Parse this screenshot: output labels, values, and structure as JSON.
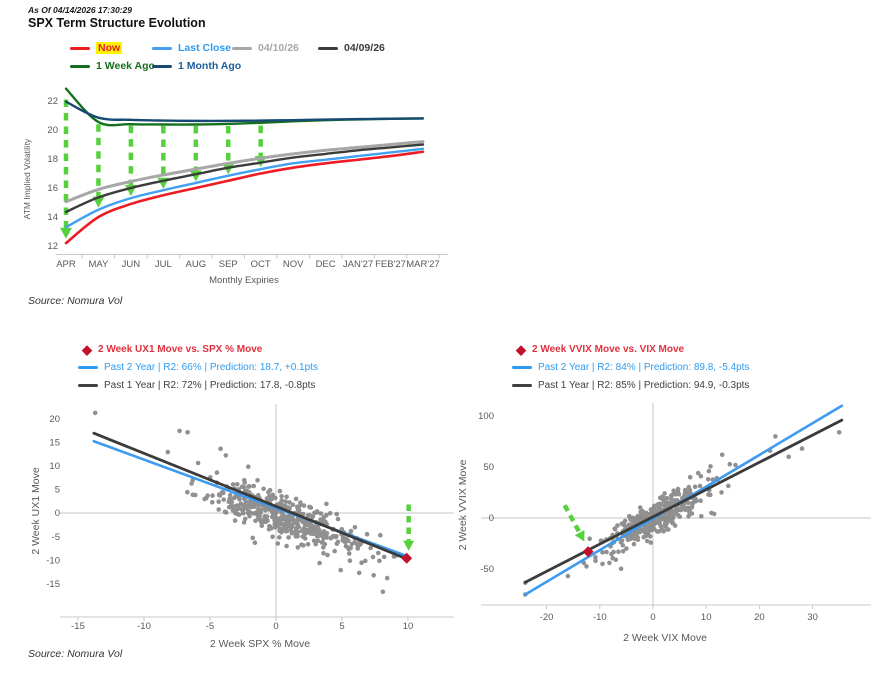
{
  "header": {
    "as_of": "As Of 04/14/2026 17:30:29",
    "title": "SPX Term Structure Evolution",
    "source_top": "Source: Nomura Vol",
    "source_bottom": "Source: Nomura Vol"
  },
  "colors": {
    "arrow_green": "#56D13D",
    "dot_gray": "#818181",
    "diamond_red": "#C0122B",
    "scatter_title_red": "#E0313F",
    "blue_text": "#2F9BF0",
    "dark_text": "#404040",
    "tick_text": "#595959",
    "axis_line": "#C9C9C9",
    "zero_line": "#D9D9D9",
    "highlight_yellow": "#FFF104"
  },
  "chart_data": [
    {
      "id": "term-structure",
      "type": "line",
      "title": "SPX Term Structure Evolution",
      "xlabel": "Monthly Expiries",
      "ylabel": "ATM Implied Volatility",
      "ylim": [
        11.8,
        23.2
      ],
      "yticks": [
        12,
        14,
        16,
        18,
        20,
        22
      ],
      "categories": [
        "APR",
        "MAY",
        "JUN",
        "JUL",
        "AUG",
        "SEP",
        "OCT",
        "NOV",
        "DEC",
        "JAN'27",
        "FEB'27",
        "MAR'27"
      ],
      "series": [
        {
          "name": "Now",
          "color": "#ED1B24",
          "width": 2.6,
          "values": [
            12.2,
            14.0,
            14.9,
            15.5,
            16.0,
            16.5,
            17.0,
            17.4,
            17.7,
            17.95,
            18.2,
            18.5
          ]
        },
        {
          "name": "Last Close",
          "color": "#41A0F1",
          "width": 2.4,
          "values": [
            13.3,
            14.5,
            15.3,
            15.85,
            16.35,
            16.85,
            17.3,
            17.7,
            17.95,
            18.2,
            18.45,
            18.7
          ]
        },
        {
          "name": "04/10/26",
          "color": "#A7A7A7",
          "width": 3,
          "values": [
            15.05,
            15.9,
            16.45,
            16.9,
            17.3,
            17.7,
            18.05,
            18.35,
            18.6,
            18.8,
            19.0,
            19.2
          ]
        },
        {
          "name": "04/09/26",
          "color": "#3C3C3C",
          "width": 2.4,
          "values": [
            14.35,
            15.35,
            16.0,
            16.5,
            16.95,
            17.4,
            17.75,
            18.1,
            18.35,
            18.6,
            18.8,
            19.0
          ]
        },
        {
          "name": "1 Week Ago",
          "color": "#15701C",
          "width": 2.4,
          "values": [
            22.85,
            20.55,
            20.4,
            20.38,
            20.38,
            20.42,
            20.5,
            20.6,
            20.68,
            20.73,
            20.77,
            20.8
          ]
        },
        {
          "name": "1 Month Ago",
          "color": "#174A73",
          "width": 2.4,
          "values": [
            21.95,
            20.85,
            20.7,
            20.65,
            20.63,
            20.63,
            20.65,
            20.68,
            20.72,
            20.75,
            20.78,
            20.8
          ]
        }
      ],
      "arrows": [
        [
          0,
          22.1,
          12.5
        ],
        [
          1,
          20.4,
          14.65
        ],
        [
          2,
          20.3,
          15.45
        ],
        [
          3,
          20.28,
          15.95
        ],
        [
          4,
          20.28,
          16.45
        ],
        [
          5,
          20.28,
          16.95
        ],
        [
          6,
          20.3,
          17.45
        ]
      ],
      "legend_rows": [
        [
          {
            "series": 0,
            "x": 50,
            "y": 2,
            "text_color": "#E8192C",
            "highlight": "#FFF104"
          },
          {
            "series": 1,
            "x": 132,
            "y": 2,
            "text_color": "#2F9BF0"
          },
          {
            "series": 2,
            "x": 212,
            "y": 2,
            "text_color": "#A7A7A7"
          },
          {
            "series": 3,
            "x": 298,
            "y": 2,
            "text_color": "#3C3C3C"
          }
        ],
        [
          {
            "series": 4,
            "x": 50,
            "y": 20,
            "text_color": "#15701C"
          },
          {
            "series": 5,
            "x": 132,
            "y": 20,
            "text_color": "#1B5E9E"
          }
        ]
      ]
    },
    {
      "id": "ux1-spx",
      "type": "scatter",
      "title": "2 Week UX1  Move  vs. SPX % Move",
      "xlabel": "2 Week SPX % Move",
      "ylabel": "2 Week UX1  Move",
      "xlim": [
        -16.2,
        11.5
      ],
      "ylim": [
        -19.5,
        22.5
      ],
      "xticks": [
        -15,
        -10,
        -5,
        0,
        5,
        10
      ],
      "yticks": [
        -15,
        -10,
        -5,
        0,
        5,
        10,
        15,
        20
      ],
      "legend": [
        {
          "name": "past-2-year",
          "label": "Past 2 Year | R2: 66% | Prediction: 18.7, +0.1pts",
          "color": "#2F9BF0"
        },
        {
          "name": "past-1-year",
          "label": "Past 1 Year | R2: 72% | Prediction: 17.8, -0.8pts",
          "color": "#404040"
        }
      ],
      "lines": [
        {
          "name": "past-2-year",
          "color": "#3E9BF0",
          "width": 2.6,
          "x1": -13.8,
          "y1": 15.2,
          "x2": 9.9,
          "y2": -9.1
        },
        {
          "name": "past-1-year",
          "color": "#3B3B3B",
          "width": 2.8,
          "x1": -13.8,
          "y1": 16.9,
          "x2": 9.9,
          "y2": -9.7
        }
      ],
      "marker": {
        "x": 9.9,
        "y": -9.6,
        "color": "#C0122B"
      },
      "arrow": {
        "x1": 10.05,
        "y1": 1.8,
        "x2": 10.05,
        "y2": -8.0
      },
      "cloud": {
        "seed": 42,
        "n": 430,
        "x_mean": 0.3,
        "x_sd": 3.1,
        "slope": -1.03,
        "intercept": -0.2,
        "noise_sd": 2.1,
        "x_min": -13.5,
        "x_max": 9.6
      },
      "outliers": [
        [
          -13.7,
          21.2
        ],
        [
          -7.3,
          17.4
        ],
        [
          -6.7,
          17.1
        ],
        [
          -4.2,
          13.6
        ],
        [
          -8.2,
          12.9
        ],
        [
          -3.8,
          12.2
        ],
        [
          -5.9,
          10.6
        ],
        [
          -2.1,
          9.8
        ],
        [
          3.3,
          -10.6
        ],
        [
          4.9,
          -12.1
        ],
        [
          6.3,
          -12.7
        ],
        [
          8.1,
          -16.7
        ],
        [
          7.4,
          -13.2
        ],
        [
          9.1,
          -9.0
        ],
        [
          8.2,
          -9.3
        ],
        [
          6.9,
          -4.5
        ],
        [
          7.9,
          -4.7
        ],
        [
          5.6,
          -10.1
        ],
        [
          3.9,
          -8.9
        ],
        [
          -1.6,
          -6.3
        ],
        [
          0.8,
          -7.0
        ]
      ]
    },
    {
      "id": "vvix-vix",
      "type": "scatter",
      "title": "2 Week VVIX  Move  vs. VIX  Move",
      "xlabel": "2 Week VIX  Move",
      "ylabel": "2 Week VVIX  Move",
      "xlim": [
        -27,
        37
      ],
      "ylim": [
        -90,
        118
      ],
      "xticks": [
        -20,
        -10,
        0,
        10,
        20,
        30
      ],
      "yticks": [
        -50,
        0,
        50,
        100
      ],
      "legend": [
        {
          "name": "past-2-year",
          "label": "Past 2 Year | R2: 84% | Prediction: 89.8, -5.4pts",
          "color": "#2F9BF0"
        },
        {
          "name": "past-1-year",
          "label": "Past 1 Year | R2: 85% | Prediction: 94.9, -0.3pts",
          "color": "#404040"
        }
      ],
      "lines": [
        {
          "name": "past-2-year",
          "color": "#3E9BF0",
          "width": 2.6,
          "x1": -24,
          "y1": -75,
          "x2": 35.5,
          "y2": 110
        },
        {
          "name": "past-1-year",
          "color": "#3B3B3B",
          "width": 2.8,
          "x1": -24,
          "y1": -63,
          "x2": 35.5,
          "y2": 96
        }
      ],
      "marker": {
        "x": -12.2,
        "y": -33,
        "color": "#C0122B"
      },
      "arrow": {
        "x1": -16.6,
        "y1": 12.5,
        "x2": -12.9,
        "y2": -23
      },
      "cloud": {
        "seed": 1337,
        "n": 430,
        "x_mean": 0.4,
        "x_sd": 4.3,
        "slope": 2.8,
        "intercept": -1.5,
        "noise_sd": 7.5,
        "x_min": -24,
        "x_max": 35
      },
      "outliers": [
        [
          -24,
          -75
        ],
        [
          -24,
          -63.5
        ],
        [
          -16,
          -57
        ],
        [
          -13,
          -44
        ],
        [
          -12.5,
          -47.5
        ],
        [
          -10.8,
          -42
        ],
        [
          -9.5,
          -45
        ],
        [
          -8.2,
          -44
        ],
        [
          -7.0,
          -41
        ],
        [
          23,
          80
        ],
        [
          28,
          68
        ],
        [
          25.5,
          60
        ],
        [
          35,
          84
        ],
        [
          13,
          62
        ],
        [
          15.5,
          52
        ],
        [
          22,
          66
        ],
        [
          11,
          5
        ],
        [
          11.5,
          4
        ],
        [
          9,
          41
        ],
        [
          10.5,
          46
        ],
        [
          12,
          39
        ],
        [
          8.5,
          44
        ],
        [
          7,
          40
        ],
        [
          -5,
          -30
        ],
        [
          -6.5,
          -33
        ]
      ]
    }
  ]
}
